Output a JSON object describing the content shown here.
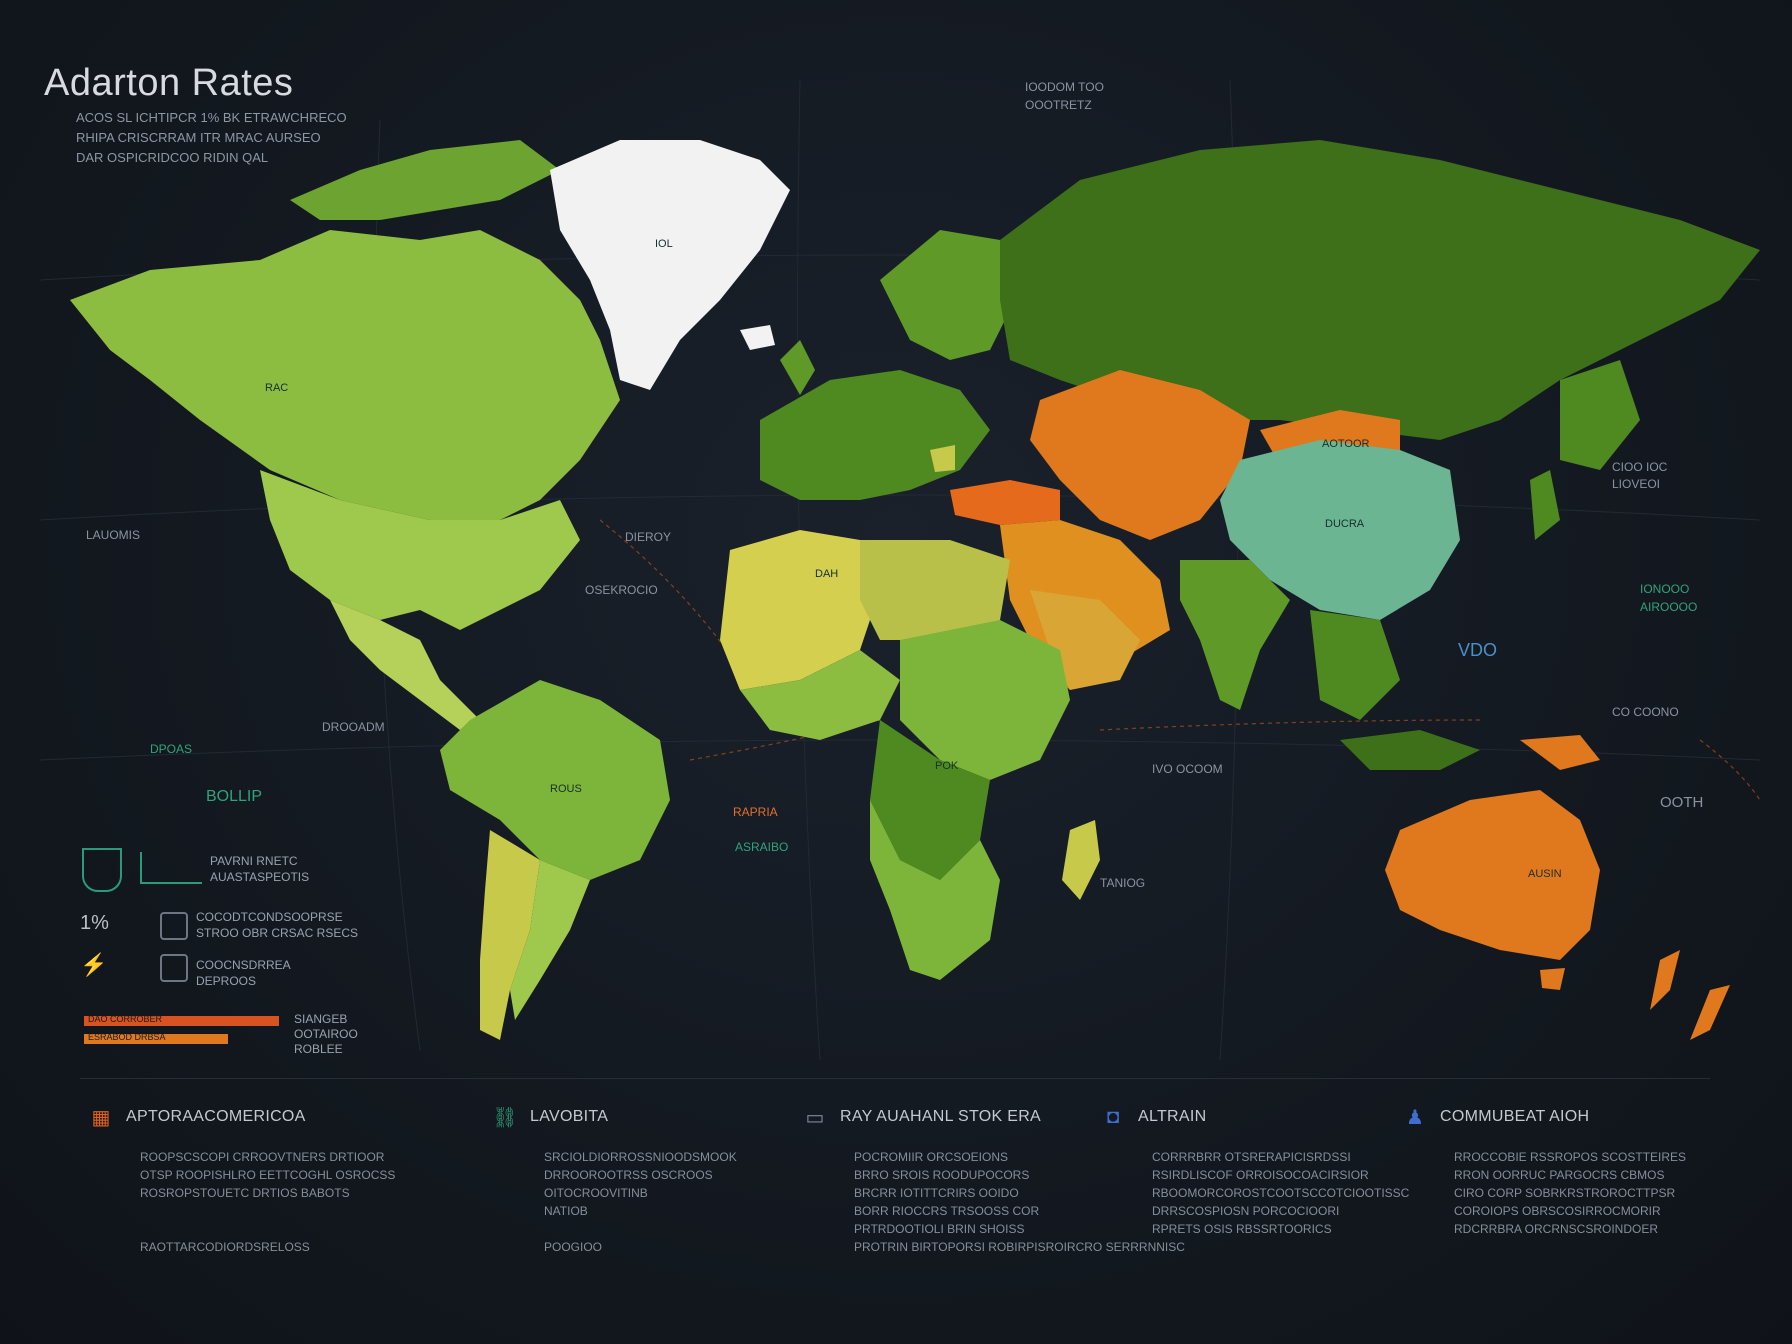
{
  "title": "Adarton Rates",
  "subtitle_lines": [
    "ACOS SL ICHTIPCR 1% BK ETRAWCHRECO",
    "RHIPA CRISCRRAM ITR MRAC AURSEO",
    "DAR OSPICRIDCOO RIDIN QAL"
  ],
  "colors": {
    "background": "#141a22",
    "dark_green": "#3d7019",
    "mid_green": "#5f9928",
    "light_green": "#8cbd40",
    "yellow_green": "#c7c94a",
    "orange": "#e0781e",
    "amber": "#d99a30",
    "teal": "#6bb592",
    "white": "#f2f2f2"
  },
  "map_labels": {
    "top_right_legend": [
      "IOODOM TOO",
      "OOOTRETZ"
    ],
    "greenland": "IOL",
    "north_america": "RAC",
    "left_a": "LAUOMIS",
    "left_green": "BOLLIP",
    "left_small": "DPOAS",
    "center_atlantic": "DIEROY",
    "center_atlantic2": "OSEKROCIO",
    "south_atlantic": "DROOADM",
    "south_america": "ROUS",
    "north_africa": "DAH",
    "africa_mid": "POK",
    "africa_orange": "RAPRIA",
    "africa_green": "ASRAIBO",
    "indian_ocean": "IVO OCOOM",
    "madagascar": "TANIOG",
    "china": "DUCRA",
    "mongolia": "AOTOOR",
    "east_asia": "CIOO IOC",
    "east_asia2": "LIOVEOI",
    "east_green": "IONOOO",
    "east_green2": "AIROOOO",
    "pacific": "VDO",
    "oceania_top": "CO COONO",
    "oceania_right": "OOTH",
    "australia": "AUSIN"
  },
  "left_legend": {
    "row1_title": "PAVRNI RNETC",
    "row1_sub": "AUASTASPEOTIS",
    "row2_value": "1%",
    "row2_line1": "COCODTCONDSOOPRSE",
    "row2_line2": "STROO OBR CRSAC RSECS",
    "row3_line1": "COOCNSDRREA",
    "row3_line2": "DEPROOS",
    "bars": [
      {
        "label": "DAO CORROBER",
        "fraction": 1.0,
        "color": "#d8531f"
      },
      {
        "label": "ESRABOD DRBSA",
        "fraction": 0.74,
        "color": "#e0781e"
      }
    ],
    "bar_side_text": [
      "SIANGEB",
      "OOTAIROO",
      "ROBLEE"
    ]
  },
  "sections": [
    {
      "title": "APTORAACOMERICOA",
      "icon": "grid-icon",
      "lines": [
        "ROOPSCSCOPI CRROOVTNERS DRTIOOR",
        "OTSP ROOPISHLRO EETTCOGHL OSROCSS",
        "ROSROPSTOUETC DRTIOS BABOTS"
      ],
      "extra_line": "RAOTTARCODIORDSRELOSS"
    },
    {
      "title": "LAVOBITA",
      "icon": "link-icon",
      "lines": [
        "SRCIOLDIORROSSNIOODSMOOK",
        "DRROOROOTRSS OSCROOS",
        "OITOCROOVITINB",
        "NATIOB"
      ],
      "extra_line": "POOGIOO"
    },
    {
      "title": "RAY AUAHANL STOK ERA",
      "icon": "device-icon",
      "lines": [
        "POCROMIIR ORCSOEIONS",
        "BRRO SROIS ROODUPOCORS",
        "BRCRR IOTITTCRIRS OOIDO",
        "BORR RIOCCRS TRSOOSS COR",
        "PRTRDOOTIOLI BRIN SHOISS"
      ],
      "extra_line": "PROTRIN BIRTOPORSI ROBIRPISROIRCRO SERRRNNISC"
    },
    {
      "title": "ALTRAIN",
      "icon": "bag-icon",
      "lines": [
        "CORRRBRR OTSRERAPICISRDSSI",
        "RSIRDLISCOF ORROISOCOACIRSIOR",
        "RBOOMORCOROSTCOOTSCCOTCIOOTISSC",
        "DRRSCOSPIOSN PORCOCIOORI",
        "RPRETS OSIS RBSSRTOORICS"
      ]
    },
    {
      "title": "COMMUBEAT AIOH",
      "icon": "person-icon",
      "lines": [
        "RROCCOBIE RSSROPOS SCOSTTEIRES",
        "RRON OORRUC PARGOCRS CBMOS",
        "CIRO CORP SOBRKRSTROROCTTPSR",
        "COROIOPS OBRSCOSIRROCMORIR",
        "RDCRRBRA ORCRNSCSROINDOER"
      ]
    }
  ]
}
